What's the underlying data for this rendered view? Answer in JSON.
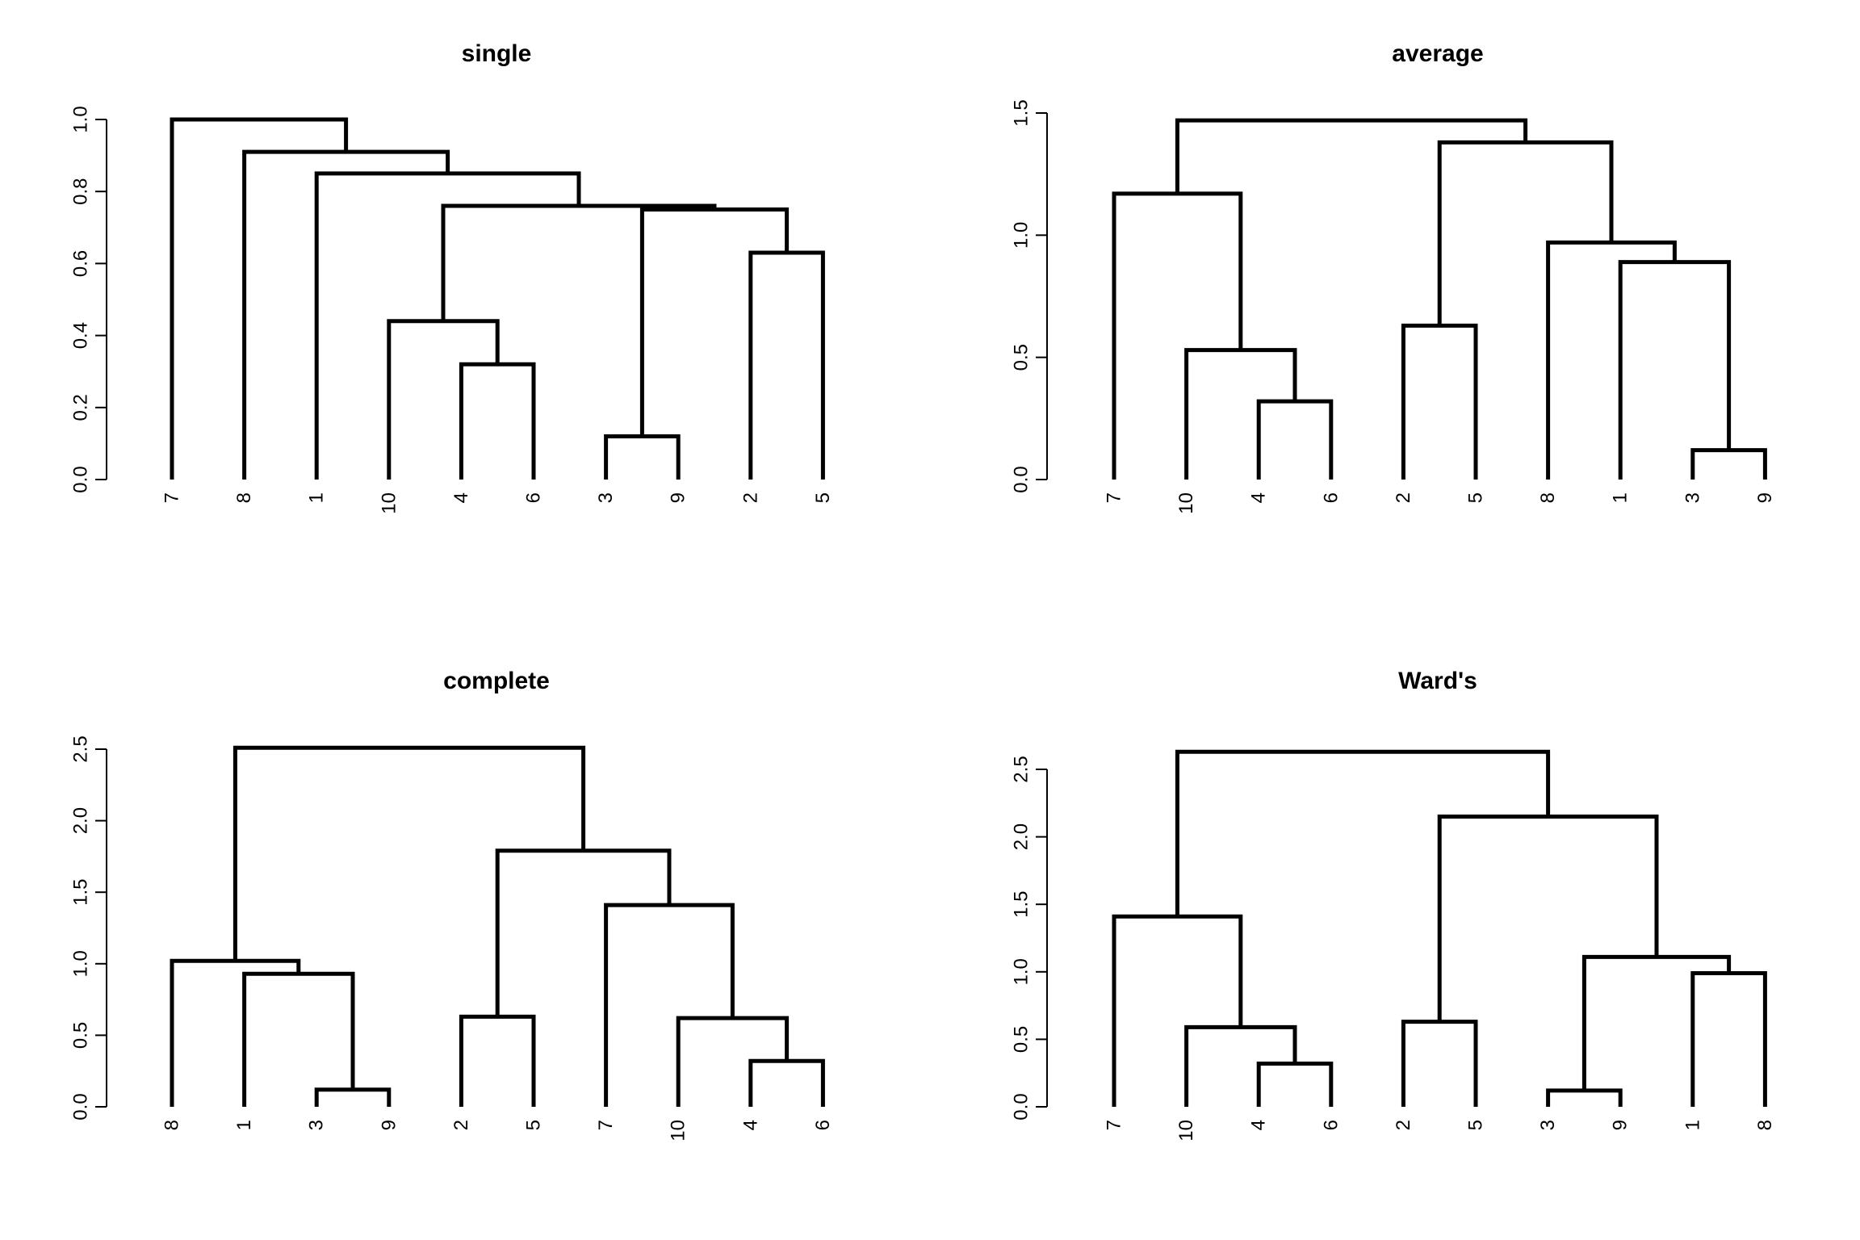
{
  "chart_data": [
    {
      "type": "dendrogram",
      "title": "single",
      "ylim": [
        0,
        1.0
      ],
      "yticks": [
        "0.0",
        "0.2",
        "0.4",
        "0.6",
        "0.8",
        "1.0"
      ],
      "leaves": [
        "7",
        "8",
        "1",
        "10",
        "4",
        "6",
        "3",
        "9",
        "2",
        "5"
      ],
      "merges": [
        {
          "left": "3",
          "right": "9",
          "height": 0.12
        },
        {
          "left": "4",
          "right": "6",
          "height": 0.32
        },
        {
          "left": "10",
          "right": "m1",
          "height": 0.44
        },
        {
          "left": "2",
          "right": "5",
          "height": 0.63
        },
        {
          "left": "m0",
          "right": "m3",
          "height": 0.75
        },
        {
          "left": "m2",
          "right": "m4",
          "height": 0.76
        },
        {
          "left": "1",
          "right": "m5",
          "height": 0.85
        },
        {
          "left": "8",
          "right": "m6",
          "height": 0.91
        },
        {
          "left": "7",
          "right": "m7",
          "height": 1.0
        }
      ]
    },
    {
      "type": "dendrogram",
      "title": "average",
      "ylim": [
        0,
        1.5
      ],
      "yticks": [
        "0.0",
        "0.5",
        "1.0",
        "1.5"
      ],
      "leaves": [
        "7",
        "10",
        "4",
        "6",
        "2",
        "5",
        "8",
        "1",
        "3",
        "9"
      ],
      "merges": [
        {
          "left": "3",
          "right": "9",
          "height": 0.12
        },
        {
          "left": "4",
          "right": "6",
          "height": 0.32
        },
        {
          "left": "10",
          "right": "m1",
          "height": 0.53
        },
        {
          "left": "2",
          "right": "5",
          "height": 0.63
        },
        {
          "left": "1",
          "right": "m0",
          "height": 0.89
        },
        {
          "left": "8",
          "right": "m4",
          "height": 0.97
        },
        {
          "left": "7",
          "right": "m2",
          "height": 1.17
        },
        {
          "left": "m3",
          "right": "m5",
          "height": 1.38
        },
        {
          "left": "m6",
          "right": "m7",
          "height": 1.47
        }
      ]
    },
    {
      "type": "dendrogram",
      "title": "complete",
      "ylim": [
        0,
        2.5
      ],
      "yticks": [
        "0.0",
        "0.5",
        "1.0",
        "1.5",
        "2.0",
        "2.5"
      ],
      "leaves": [
        "8",
        "1",
        "3",
        "9",
        "2",
        "5",
        "7",
        "10",
        "4",
        "6"
      ],
      "merges": [
        {
          "left": "3",
          "right": "9",
          "height": 0.12
        },
        {
          "left": "4",
          "right": "6",
          "height": 0.32
        },
        {
          "left": "10",
          "right": "m1",
          "height": 0.62
        },
        {
          "left": "2",
          "right": "5",
          "height": 0.63
        },
        {
          "left": "1",
          "right": "m0",
          "height": 0.93
        },
        {
          "left": "8",
          "right": "m4",
          "height": 1.02
        },
        {
          "left": "7",
          "right": "m2",
          "height": 1.41
        },
        {
          "left": "m3",
          "right": "m6",
          "height": 1.79
        },
        {
          "left": "m5",
          "right": "m7",
          "height": 2.51
        }
      ]
    },
    {
      "type": "dendrogram",
      "title": "Ward's",
      "ylim": [
        0,
        2.5
      ],
      "yticks": [
        "0.0",
        "0.5",
        "1.0",
        "1.5",
        "2.0",
        "2.5"
      ],
      "leaves": [
        "7",
        "10",
        "4",
        "6",
        "2",
        "5",
        "3",
        "9",
        "1",
        "8"
      ],
      "merges": [
        {
          "left": "3",
          "right": "9",
          "height": 0.12
        },
        {
          "left": "4",
          "right": "6",
          "height": 0.32
        },
        {
          "left": "10",
          "right": "m1",
          "height": 0.59
        },
        {
          "left": "2",
          "right": "5",
          "height": 0.63
        },
        {
          "left": "1",
          "right": "8",
          "height": 0.99
        },
        {
          "left": "m0",
          "right": "m4",
          "height": 1.11
        },
        {
          "left": "7",
          "right": "m2",
          "height": 1.41
        },
        {
          "left": "m3",
          "right": "m5",
          "height": 2.15
        },
        {
          "left": "m6",
          "right": "m7",
          "height": 2.63
        }
      ]
    }
  ]
}
